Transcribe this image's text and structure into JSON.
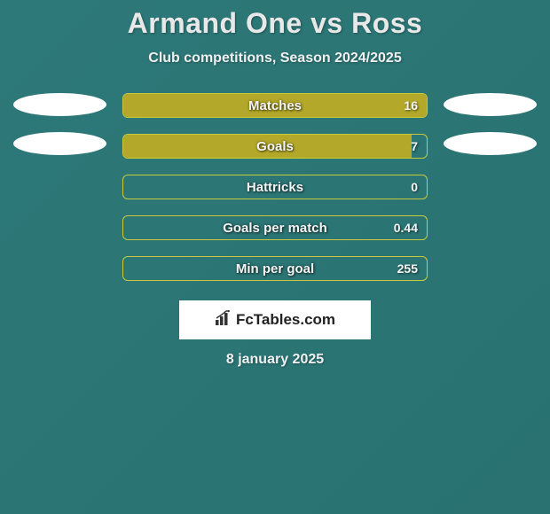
{
  "header": {
    "title": "Armand One vs Ross",
    "subtitle": "Club competitions, Season 2024/2025"
  },
  "stats": [
    {
      "label": "Matches",
      "value": "16",
      "fill_pct": 100,
      "fill_color": "#b3a829",
      "border_color": "#c9c93a"
    },
    {
      "label": "Goals",
      "value": "7",
      "fill_pct": 95,
      "fill_color": "#b3a829",
      "border_color": "#c9c93a"
    },
    {
      "label": "Hattricks",
      "value": "0",
      "fill_pct": 0,
      "fill_color": "#b3a829",
      "border_color": "#c9c93a"
    },
    {
      "label": "Goals per match",
      "value": "0.44",
      "fill_pct": 0,
      "fill_color": "#b3a829",
      "border_color": "#c9c93a"
    },
    {
      "label": "Min per goal",
      "value": "255",
      "fill_pct": 0,
      "fill_color": "#b3a829",
      "border_color": "#c9c93a"
    }
  ],
  "side_ovals": {
    "left_count": 2,
    "right_count": 2,
    "oval_color": "#ffffff"
  },
  "logo": {
    "text": "FcTables.com",
    "icon_name": "bar-chart-icon",
    "box_bg": "#ffffff",
    "text_color": "#222222"
  },
  "footer": {
    "date": "8 january 2025"
  },
  "theme": {
    "background": "#2a7a7a",
    "text_color": "#f0f0f0"
  }
}
